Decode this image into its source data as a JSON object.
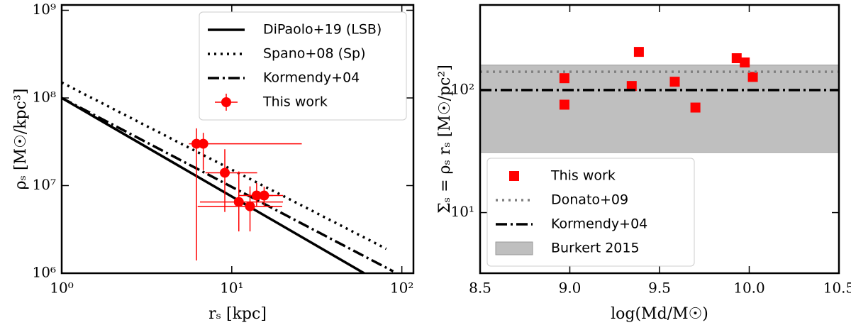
{
  "chart_data": [
    {
      "type": "line",
      "xlabel": "rₛ [kpc]",
      "ylabel": "ρₛ [M☉/kpc³]",
      "xlog": true,
      "ylog": true,
      "xlim": [
        1,
        117
      ],
      "ylim": [
        1000000,
        1150000000
      ],
      "xticks": [
        {
          "value": 1,
          "label": "10⁰"
        },
        {
          "value": 10,
          "label": "10¹"
        },
        {
          "value": 100,
          "label": "10²"
        }
      ],
      "yticks": [
        {
          "value": 1000000,
          "label": "10⁶"
        },
        {
          "value": 10000000,
          "label": "10⁷"
        },
        {
          "value": 100000000,
          "label": "10⁸"
        },
        {
          "value": 1000000000,
          "label": "10⁹"
        }
      ],
      "legend": "upper right",
      "series": [
        {
          "name": "DiPaolo+19 (LSB)",
          "kind": "line",
          "style": "solid",
          "color": "#000000",
          "x": [
            1,
            60
          ],
          "y": [
            100000000,
            1000000
          ]
        },
        {
          "name": "Spano+08 (Sp)",
          "kind": "line",
          "style": "dotted",
          "color": "#000000",
          "x": [
            1,
            81
          ],
          "y": [
            150000000,
            1900000
          ]
        },
        {
          "name": "Kormendy+04",
          "kind": "line",
          "style": "dashdot",
          "color": "#000000",
          "x": [
            1,
            89
          ],
          "y": [
            100000000,
            1050000
          ]
        },
        {
          "name": "This work",
          "kind": "errorbar",
          "color": "#ff0000",
          "x": [
            6.2,
            6.8,
            9.1,
            11,
            12.8,
            14,
            15.5
          ],
          "y": [
            30000000,
            30000000,
            14000000,
            6500000,
            5800000,
            7700000,
            7700000
          ],
          "xerr": [
            [
              0.6,
              0.8
            ],
            [
              1.0,
              19
            ],
            [
              2.1,
              5
            ],
            [
              4.5,
              9
            ],
            [
              6.5,
              7
            ],
            [
              3,
              3.5
            ],
            [
              3,
              4.5
            ]
          ],
          "yerr": [
            [
              28600000,
              15000000
            ],
            [
              15000000,
              10000000
            ],
            [
              9000000,
              12000000
            ],
            [
              3500000,
              8000000
            ],
            [
              2800000,
              4000000
            ],
            [
              2000000,
              3000000
            ],
            [
              2000000,
              2000000
            ]
          ]
        }
      ]
    },
    {
      "type": "scatter",
      "xlabel": "log(Md/M☉)",
      "ylabel": "Σₛ = ρₛ rₛ [M☉/pc²]",
      "xlog": false,
      "ylog": true,
      "xlim": [
        8.5,
        10.5
      ],
      "ylim": [
        3.2,
        495
      ],
      "xticks": [
        8.5,
        {
          "value": 9.0,
          "label": "9.0"
        },
        9.5,
        {
          "value": 10.0,
          "label": "10.0"
        },
        10.5
      ],
      "yticks": [
        {
          "value": 10,
          "label": "10¹"
        },
        {
          "value": 100,
          "label": "10²"
        }
      ],
      "legend": "lower left",
      "series": [
        {
          "name": "This work",
          "kind": "scatter",
          "color": "#ff0000",
          "x": [
            8.97,
            8.97,
            9.345,
            9.385,
            9.585,
            9.7,
            9.93,
            9.975,
            10.02
          ],
          "y": [
            125,
            76,
            108,
            205,
            117,
            72,
            182,
            168,
            128
          ]
        },
        {
          "name": "Donato+09",
          "kind": "hline",
          "style": "dotted",
          "color": "#808080",
          "y": 141
        },
        {
          "name": "Kormendy+04",
          "kind": "hline",
          "style": "dashdot",
          "color": "#000000",
          "y": 100
        },
        {
          "name": "Burkert 2015",
          "kind": "band",
          "color": "#bfbfbf",
          "y": [
            31,
            160
          ]
        }
      ]
    }
  ]
}
